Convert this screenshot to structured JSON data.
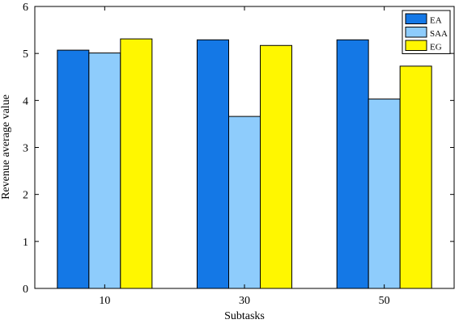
{
  "chart_data": {
    "type": "bar",
    "title": "",
    "xlabel": "Subtasks",
    "ylabel": "Revenue average value",
    "categories": [
      "10",
      "30",
      "50"
    ],
    "ylim": [
      0,
      6
    ],
    "yticks": [
      "0",
      "1",
      "2",
      "3",
      "4",
      "5",
      "6"
    ],
    "grid": false,
    "legend_position": "top-right",
    "series": [
      {
        "name": "EA",
        "color": "#1478E6",
        "values": [
          5.07,
          5.29,
          5.29
        ]
      },
      {
        "name": "SAA",
        "color": "#8ECCFC",
        "values": [
          5.01,
          3.66,
          4.03
        ]
      },
      {
        "name": "EG",
        "color": "#FFF700",
        "values": [
          5.31,
          5.17,
          4.73
        ]
      }
    ]
  }
}
